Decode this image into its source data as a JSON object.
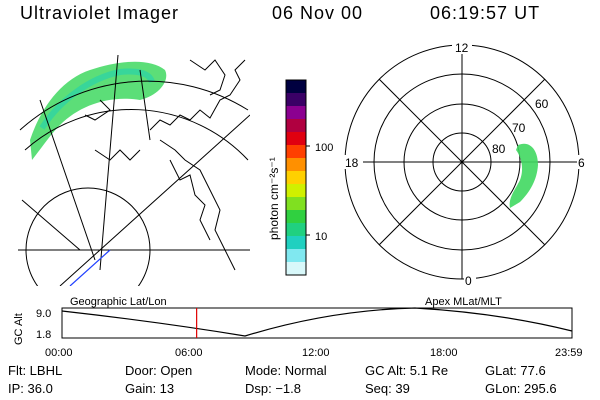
{
  "header": {
    "title": "Ultraviolet Imager",
    "date": "06 Nov 00",
    "time": "06:19:57 UT"
  },
  "colorbar": {
    "unit_label": "photon cm⁻²s⁻¹",
    "ticks": [
      {
        "label": "100",
        "value": 100
      },
      {
        "label": "10",
        "value": 10
      }
    ],
    "colors": [
      "#000040",
      "#3a0066",
      "#8b0090",
      "#b00040",
      "#e00010",
      "#ff4000",
      "#ff9000",
      "#ffd000",
      "#d0f000",
      "#80e020",
      "#30d040",
      "#20d080",
      "#20d0c0",
      "#80e8f0",
      "#d8f8fa"
    ]
  },
  "polar_plot": {
    "mlt_labels": {
      "top": "12",
      "right": "6",
      "bottom": "0",
      "left": "18"
    },
    "lat_labels": [
      "60",
      "70",
      "80"
    ]
  },
  "timeline": {
    "y_axis_label": "GC Alt",
    "y_ticks": [
      "9.0",
      "1.8"
    ],
    "left_label": "Geographic Lat/Lon",
    "right_label": "Apex MLat/MLT",
    "x_ticks": [
      "00:00",
      "06:00",
      "12:00",
      "18:00",
      "23:59"
    ],
    "current_time_fraction": 0.264
  },
  "info": {
    "flt": "Flt: LBHL",
    "ip": "IP: 36.0",
    "door": "Door: Open",
    "gain": "Gain: 13",
    "mode": "Mode: Normal",
    "dsp": "Dsp:   −1.8",
    "gc_alt": "GC Alt: 5.1 Re",
    "seq": "Seq: 39",
    "glat": "GLat:  77.6",
    "glon": "GLon: 295.6"
  }
}
